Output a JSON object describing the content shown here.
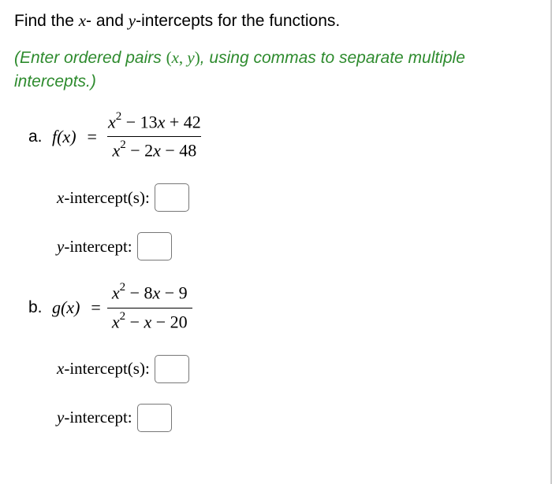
{
  "title_prefix": "Find the ",
  "title_mid": "- and ",
  "title_suffix": "-intercepts for the functions.",
  "var_x": "x",
  "var_y": "y",
  "instruction_prefix": "(Enter ordered pairs ",
  "instruction_pair_open": "(",
  "instruction_pair_sep": ", ",
  "instruction_pair_close": ")",
  "instruction_suffix": ", using commas to separate multiple intercepts.)",
  "instruction_color": "#2e8b2e",
  "parts": {
    "a": {
      "label": "a.",
      "func_name": "f",
      "func_arg": "x",
      "numerator": {
        "term1": "x",
        "exp1": "2",
        "op1": " − 13",
        "term2": "x",
        "op2": " + 42"
      },
      "denominator": {
        "term1": "x",
        "exp1": "2",
        "op1": " − 2",
        "term2": "x",
        "op2": " − 48"
      }
    },
    "b": {
      "label": "b.",
      "func_name": "g",
      "func_arg": "x",
      "numerator": {
        "term1": "x",
        "exp1": "2",
        "op1": " − 8",
        "term2": "x",
        "op2": " − 9"
      },
      "denominator": {
        "term1": "x",
        "exp1": "2",
        "op1": " − ",
        "term2": "x",
        "op2": " − 20"
      }
    }
  },
  "x_intercept_label": "-intercept(s):",
  "y_intercept_label": "-intercept:",
  "colors": {
    "text": "#000000",
    "instruction": "#2e8b2e",
    "border": "#777777",
    "background": "#ffffff"
  },
  "fonts": {
    "body": "Arial",
    "math": "Times New Roman"
  }
}
